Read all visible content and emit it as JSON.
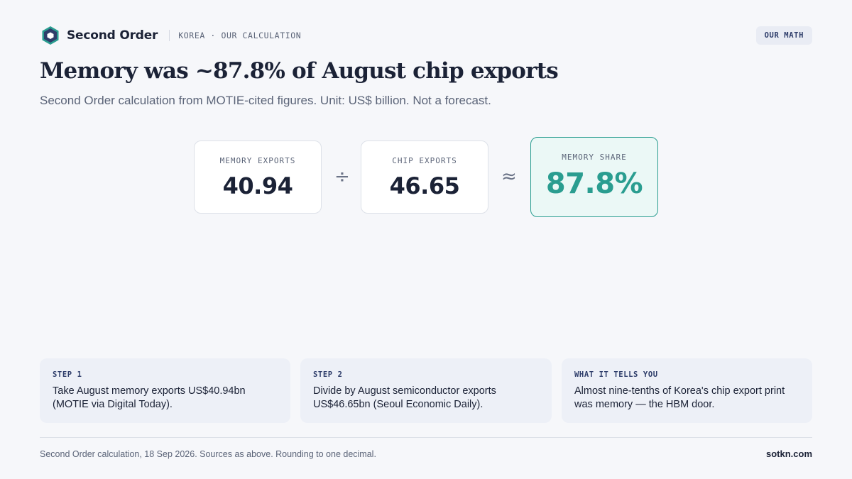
{
  "header": {
    "brand": "Second Order",
    "kicker": "KOREA · OUR CALCULATION",
    "badge": "OUR MATH",
    "logo_icon": "hexagon-logo-icon"
  },
  "title": "Memory was ~87.8% of August chip exports",
  "subtitle": "Second Order calculation from MOTIE-cited figures. Unit: US$ billion. Not a forecast.",
  "equation": {
    "memory": {
      "label": "MEMORY EXPORTS",
      "value": "40.94"
    },
    "divide_symbol": "÷",
    "chip": {
      "label": "CHIP EXPORTS",
      "value": "46.65"
    },
    "approx_symbol": "≈",
    "share": {
      "label": "MEMORY SHARE",
      "value": "87.8%"
    }
  },
  "cards": [
    {
      "step": "STEP 1",
      "text": "Take August memory exports US$40.94bn (MOTIE via Digital Today)."
    },
    {
      "step": "STEP 2",
      "text": "Divide by August semiconductor exports US$46.65bn (Seoul Economic Daily)."
    },
    {
      "step": "WHAT IT TELLS YOU",
      "text": "Almost nine-tenths of Korea's chip export print was memory — the HBM door."
    }
  ],
  "footer": {
    "note": "Second Order calculation, 18 Sep 2026. Sources as above. Rounding to one decimal.",
    "site": "sotkn.com"
  },
  "colors": {
    "background": "#f6f7fa",
    "accent_teal": "#2a9d90",
    "navy": "#2e3d6a",
    "text_dark": "#1b2236",
    "text_muted": "#5b6478"
  }
}
